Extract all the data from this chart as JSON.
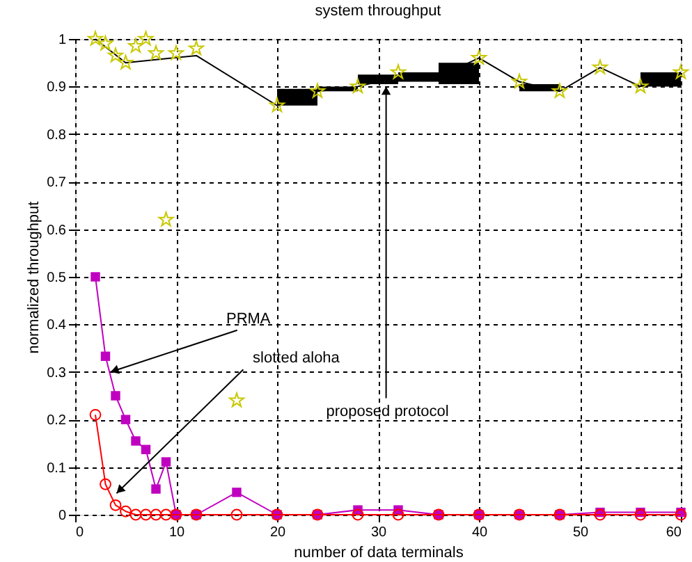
{
  "chart_data": {
    "type": "line",
    "title": "system throughput",
    "xlabel": "number of data terminals",
    "ylabel": "normalized throughput",
    "xlim": [
      0,
      60
    ],
    "ylim": [
      0,
      1
    ],
    "xticks": [
      0,
      10,
      20,
      30,
      40,
      50,
      60
    ],
    "yticks": [
      0,
      0.1,
      0.2,
      0.3,
      0.4,
      0.5,
      0.6,
      0.7,
      0.8,
      0.9,
      1
    ],
    "grid": true,
    "series": [
      {
        "type": "bar",
        "color": "#000000",
        "x": [
          22,
          26,
          30,
          34,
          38,
          46,
          58
        ],
        "base": [
          0.86,
          0.89,
          0.905,
          0.91,
          0.905,
          0.89,
          0.9
        ],
        "values": [
          0.035,
          0.01,
          0.02,
          0.02,
          0.045,
          0.015,
          0.03
        ]
      },
      {
        "color": "#000000",
        "marker": "none",
        "x": [
          2,
          5,
          12,
          20,
          24,
          28,
          32,
          36,
          40,
          44,
          48,
          52,
          56,
          60
        ],
        "values": [
          1.0,
          0.95,
          0.965,
          0.86,
          0.89,
          0.9,
          0.92,
          0.92,
          0.96,
          0.91,
          0.89,
          0.94,
          0.9,
          0.93
        ]
      },
      {
        "type": "scatter",
        "color": "#c8c800",
        "marker": "star",
        "x": [
          2,
          3,
          4,
          5,
          6,
          7,
          8,
          9,
          10,
          12,
          16,
          20,
          24,
          28,
          32,
          40,
          44,
          48,
          52,
          56,
          60
        ],
        "values": [
          1.0,
          0.99,
          0.965,
          0.95,
          0.985,
          1.0,
          0.97,
          0.62,
          0.97,
          0.98,
          0.24,
          0.86,
          0.89,
          0.9,
          0.93,
          0.96,
          0.91,
          0.89,
          0.94,
          0.9,
          0.93
        ]
      },
      {
        "type": "line",
        "color": "#c000c0",
        "marker": "square",
        "x": [
          2,
          3,
          4,
          5,
          6,
          7,
          8,
          9,
          10,
          12,
          16,
          20,
          24,
          28,
          32,
          36,
          40,
          44,
          48,
          52,
          56,
          60
        ],
        "values": [
          0.5,
          0.333,
          0.25,
          0.2,
          0.155,
          0.137,
          0.054,
          0.111,
          0,
          0,
          0.047,
          0,
          0,
          0.01,
          0.01,
          0,
          0,
          0,
          0,
          0.005,
          0.005,
          0.005
        ]
      },
      {
        "type": "line",
        "color": "#ff0000",
        "marker": "circle",
        "x": [
          2,
          3,
          4,
          5,
          6,
          7,
          8,
          9,
          10,
          12,
          16,
          20,
          24,
          28,
          32,
          36,
          40,
          44,
          48,
          52,
          56,
          60
        ],
        "values": [
          0.21,
          0.064,
          0.02,
          0.007,
          0,
          0,
          0,
          0,
          0,
          0,
          0,
          0,
          0,
          0,
          0,
          0,
          0,
          0,
          0,
          0,
          0,
          0
        ]
      }
    ],
    "annotations": [
      {
        "text": "PRMA",
        "x": 3.5,
        "y": 0.3
      },
      {
        "text": "slotted aloha",
        "x": 4.1,
        "y": 0.045
      },
      {
        "text": "proposed protocol",
        "x": 30.8,
        "y": 0.9
      }
    ]
  }
}
